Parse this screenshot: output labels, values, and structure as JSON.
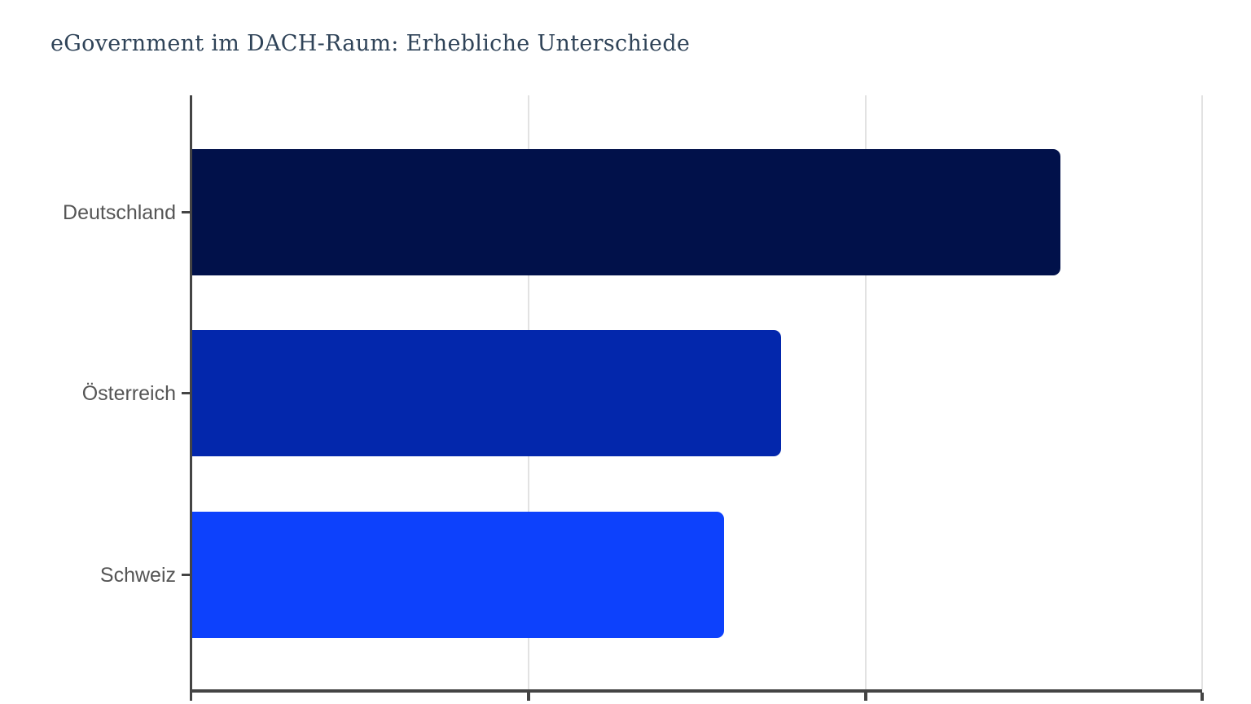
{
  "title": "eGovernment im DACH-Raum: Erhebliche Unterschiede",
  "colors": {
    "background": "#ffffff",
    "title": "#2f4358",
    "axis": "#444444",
    "gridline": "#e2e2e2",
    "category_label": "#555555"
  },
  "chart_data": {
    "type": "bar",
    "orientation": "horizontal",
    "title": "eGovernment im DACH-Raum: Erhebliche Unterschiede",
    "categories": [
      "Deutschland",
      "Österreich",
      "Schweiz"
    ],
    "values": [
      2.58,
      1.75,
      1.58
    ],
    "bar_colors": [
      "#01114a",
      "#0327ac",
      "#0d41fc"
    ],
    "xlim": [
      0,
      3
    ],
    "x_gridlines": [
      1,
      2,
      3
    ],
    "x_tick_labels_visible": false,
    "y_tick_labels_visible": true,
    "value_labels_visible": false,
    "xlabel": "",
    "ylabel": "",
    "grid": true,
    "legend": false,
    "note": "X-axis numeric tick labels are cropped out of the visible screenshot; values are expressed in gridline-interval units measured from bar lengths (gridlines at 1, 2 and 3 units)."
  }
}
